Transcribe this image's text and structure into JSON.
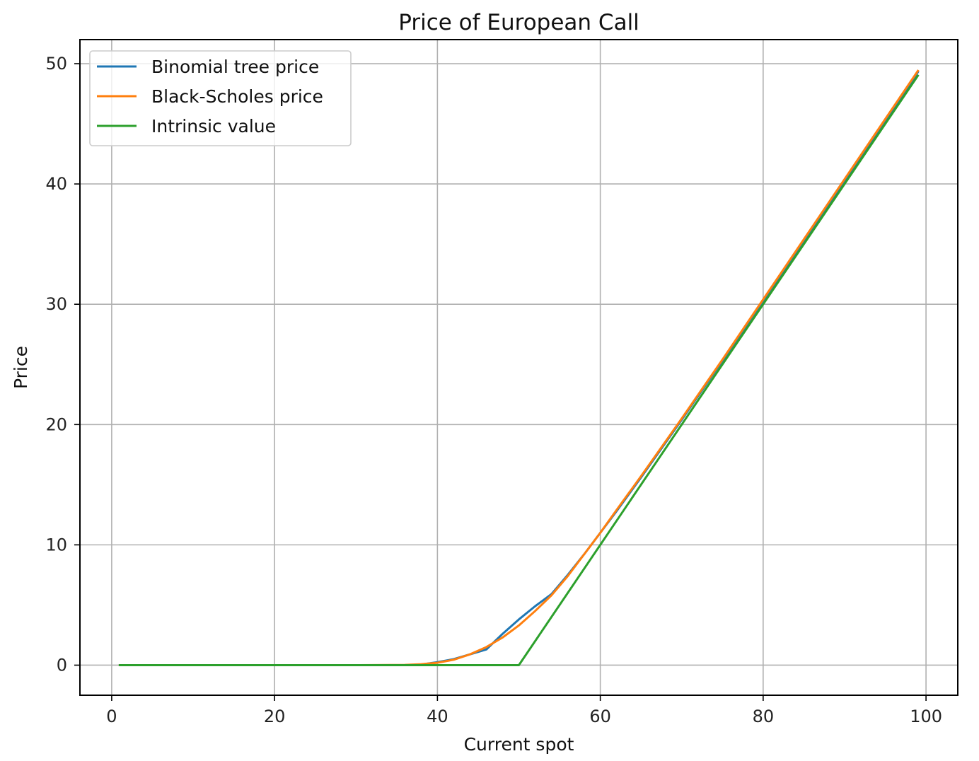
{
  "chart_data": {
    "type": "line",
    "title": "Price of European Call",
    "xlabel": "Current spot",
    "ylabel": "Price",
    "xlim": [
      -3.9,
      103.9
    ],
    "ylim": [
      -2.5,
      52.0
    ],
    "xticks": [
      0,
      20,
      40,
      60,
      80,
      100
    ],
    "yticks": [
      0,
      10,
      20,
      30,
      40,
      50
    ],
    "grid": true,
    "legend_position": "upper-left",
    "series": [
      {
        "name": "Binomial tree price",
        "color": "#1f77b4",
        "x": [
          1,
          10,
          20,
          30,
          36,
          38,
          40,
          42,
          44,
          46,
          48,
          50,
          52,
          54,
          56,
          58,
          60,
          62,
          65,
          70,
          75,
          80,
          85,
          90,
          95,
          99
        ],
        "y": [
          0,
          0,
          0,
          0,
          0,
          0.05,
          0.25,
          0.5,
          0.9,
          1.3,
          2.6,
          3.8,
          4.9,
          5.9,
          7.5,
          9.2,
          11.0,
          12.8,
          15.6,
          20.4,
          25.3,
          30.3,
          35.2,
          40.2,
          45.2,
          49.3
        ]
      },
      {
        "name": "Black-Scholes price",
        "color": "#ff7f0e",
        "x": [
          1,
          10,
          20,
          30,
          36,
          38,
          40,
          42,
          44,
          46,
          48,
          50,
          52,
          54,
          56,
          58,
          60,
          62,
          65,
          70,
          75,
          80,
          85,
          90,
          95,
          99
        ],
        "y": [
          0,
          0,
          0,
          0,
          0.02,
          0.08,
          0.2,
          0.45,
          0.9,
          1.5,
          2.3,
          3.3,
          4.5,
          5.8,
          7.4,
          9.2,
          11.0,
          12.9,
          15.7,
          20.5,
          25.4,
          30.4,
          35.4,
          40.4,
          45.4,
          49.4
        ]
      },
      {
        "name": "Intrinsic value",
        "color": "#2ca02c",
        "x": [
          1,
          50,
          99
        ],
        "y": [
          0,
          0,
          49
        ]
      }
    ]
  }
}
